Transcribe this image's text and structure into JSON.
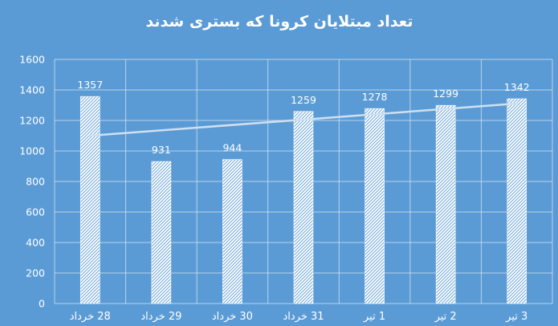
{
  "chart_data": {
    "type": "bar",
    "title": "تعداد مبتلایان کرونا که بستری شدند",
    "categories": [
      "28 خرداد",
      "29 خرداد",
      "30 خرداد",
      "31 خرداد",
      "1 تیر",
      "2 تیر",
      "3 تیر"
    ],
    "series": [
      {
        "values": [
          1357,
          931,
          944,
          1259,
          1278,
          1299,
          1342
        ]
      }
    ],
    "ylim": [
      0,
      1600
    ],
    "y_ticks": [
      0,
      200,
      400,
      600,
      800,
      1000,
      1200,
      1400,
      1600
    ],
    "grid": true,
    "trendline": {
      "type": "linear",
      "start": 1100,
      "end": 1311
    },
    "colors": {
      "background": "#5b9bd5",
      "bar_fill": "#ffffff",
      "bar_hatch": "#5b9bd5",
      "gridline": "#ffffff",
      "trendline": "#cfe0f1",
      "text": "#ffffff"
    }
  }
}
